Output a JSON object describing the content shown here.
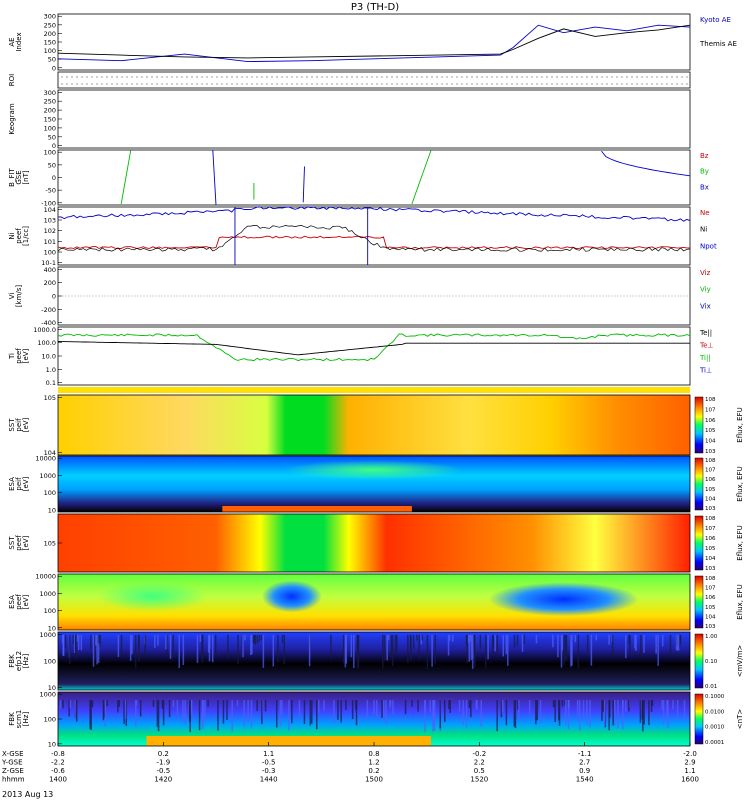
{
  "title": "P3 (TH-D)",
  "date_label": "2013 Aug 13",
  "time_axis": {
    "ticks": [
      "1400",
      "1420",
      "1440",
      "1500",
      "1520",
      "1540",
      "1600"
    ],
    "rows": [
      {
        "label": "X-GSE",
        "values": [
          "-0.8",
          "0.2",
          "1.1",
          "0.8",
          "-0.2",
          "-1.1",
          "-2.0"
        ]
      },
      {
        "label": "Y-GSE",
        "values": [
          "-2.2",
          "-1.9",
          "-0.5",
          "1.2",
          "2.2",
          "2.7",
          "2.9"
        ]
      },
      {
        "label": "Z-GSE",
        "values": [
          "-0.6",
          "-0.5",
          "-0.3",
          "0.2",
          "0.5",
          "0.9",
          "1.1"
        ]
      },
      {
        "label": "hhmm",
        "values": [
          "1400",
          "1420",
          "1440",
          "1500",
          "1520",
          "1540",
          "1600"
        ]
      }
    ]
  },
  "chart_data": [
    {
      "type": "line",
      "panel": "AE Index",
      "ylabel": "AE Index",
      "ylim": [
        0,
        300
      ],
      "yticks": [
        "0",
        "50",
        "100",
        "150",
        "200",
        "250",
        "300"
      ],
      "legend": [
        "Kyoto AE",
        "Themis AE"
      ],
      "colors": [
        "#0000cc",
        "#000000"
      ],
      "series": [
        {
          "name": "Kyoto AE",
          "x": [
            0,
            0.1,
            0.2,
            0.3,
            0.4,
            0.5,
            0.6,
            0.7,
            0.72,
            0.76,
            0.8,
            0.85,
            0.9,
            0.95,
            1.0
          ],
          "values": [
            60,
            50,
            85,
            45,
            50,
            60,
            70,
            80,
            120,
            240,
            200,
            230,
            210,
            240,
            230
          ]
        },
        {
          "name": "Themis AE",
          "x": [
            0,
            0.1,
            0.2,
            0.3,
            0.4,
            0.5,
            0.6,
            0.7,
            0.72,
            0.76,
            0.8,
            0.85,
            0.9,
            0.95,
            1.0
          ],
          "values": [
            90,
            80,
            70,
            65,
            70,
            75,
            80,
            85,
            110,
            170,
            220,
            180,
            200,
            215,
            240
          ]
        }
      ]
    },
    {
      "type": "table",
      "panel": "ROI",
      "ylabel": "ROI"
    },
    {
      "type": "line",
      "panel": "Keogram",
      "ylabel": "Keogram",
      "ylim": [
        0,
        300
      ],
      "yticks": [
        "0",
        "50",
        "100",
        "150",
        "200",
        "250",
        "300"
      ]
    },
    {
      "type": "line",
      "panel": "B FIT",
      "ylabel": "B_FIT GSE [nT]",
      "ylim": [
        -100,
        100
      ],
      "yticks": [
        "-100",
        "-50",
        "0",
        "50",
        "100"
      ],
      "legend": [
        "Bz",
        "By",
        "Bx"
      ],
      "colors": [
        "#cc0000",
        "#00bb00",
        "#0000cc"
      ]
    },
    {
      "type": "line",
      "panel": "Density",
      "ylabel": "Ni peef [1/cc]",
      "yticks": [
        "10^-1",
        "10^0",
        "10^1",
        "10^2",
        "10^3",
        "10^4"
      ],
      "legend": [
        "Ne",
        "Ni",
        "Npot"
      ],
      "colors": [
        "#cc0000",
        "#000000",
        "#0000cc"
      ]
    },
    {
      "type": "line",
      "panel": "Velocity",
      "ylabel": "Vi [km/s]",
      "ylim": [
        -500,
        500
      ],
      "yticks": [
        "-400",
        "-200",
        "0",
        "200",
        "400"
      ],
      "legend": [
        "Viz",
        "Viy",
        "Vix"
      ],
      "colors": [
        "#cc0000",
        "#00bb00",
        "#0000cc"
      ]
    },
    {
      "type": "line",
      "panel": "Temperature",
      "ylabel": "Ti peef [eV]",
      "yticks": [
        "0.1",
        "1.0",
        "10.0",
        "100.0",
        "1000.0"
      ],
      "legend": [
        "Te||",
        "Te⊥",
        "Ti||",
        "Ti⊥"
      ],
      "colors": [
        "#000000",
        "#cc0000",
        "#00bb00",
        "#0000cc"
      ]
    },
    {
      "type": "heatmap",
      "panel": "SST ion",
      "ylabel": "SST peif [eV]",
      "yticks": [
        "10^4",
        "10^5"
      ],
      "colorbar_label": "Eflux, EFU",
      "colorbar_ticks": [
        "10^3",
        "10^4",
        "10^5",
        "10^6",
        "10^7",
        "10^8"
      ]
    },
    {
      "type": "heatmap",
      "panel": "ESA ion",
      "ylabel": "ESA peif [eV]",
      "yticks": [
        "10",
        "100",
        "1000",
        "10000"
      ],
      "colorbar_label": "Eflux, EFU",
      "colorbar_ticks": [
        "10^3",
        "10^4",
        "10^5",
        "10^6",
        "10^7",
        "10^8"
      ]
    },
    {
      "type": "heatmap",
      "panel": "SST electron",
      "ylabel": "SST peef [eV]",
      "yticks": [
        "10^5"
      ],
      "colorbar_label": "Eflux, EFU",
      "colorbar_ticks": [
        "10^3",
        "10^4",
        "10^5",
        "10^6",
        "10^7",
        "10^8"
      ]
    },
    {
      "type": "heatmap",
      "panel": "ESA electron",
      "ylabel": "ESA peef [eV]",
      "yticks": [
        "10",
        "100",
        "1000",
        "10000"
      ],
      "colorbar_label": "Eflux, EFU",
      "colorbar_ticks": [
        "10^3",
        "10^4",
        "10^5",
        "10^6",
        "10^7",
        "10^8"
      ]
    },
    {
      "type": "heatmap",
      "panel": "FBK E",
      "ylabel": "FBK efp12 [Hz]",
      "yticks": [
        "10",
        "100",
        "1000"
      ],
      "colorbar_label": "<mV/m>",
      "colorbar_ticks": [
        "0.01",
        "0.10",
        "1.00"
      ]
    },
    {
      "type": "heatmap",
      "panel": "FBK B",
      "ylabel": "FBK scm1 [Hz]",
      "yticks": [
        "10",
        "100",
        "1000"
      ],
      "colorbar_label": "<nT>",
      "colorbar_ticks": [
        "0.0001",
        "0.0010",
        "0.0100",
        "0.1000"
      ]
    }
  ]
}
